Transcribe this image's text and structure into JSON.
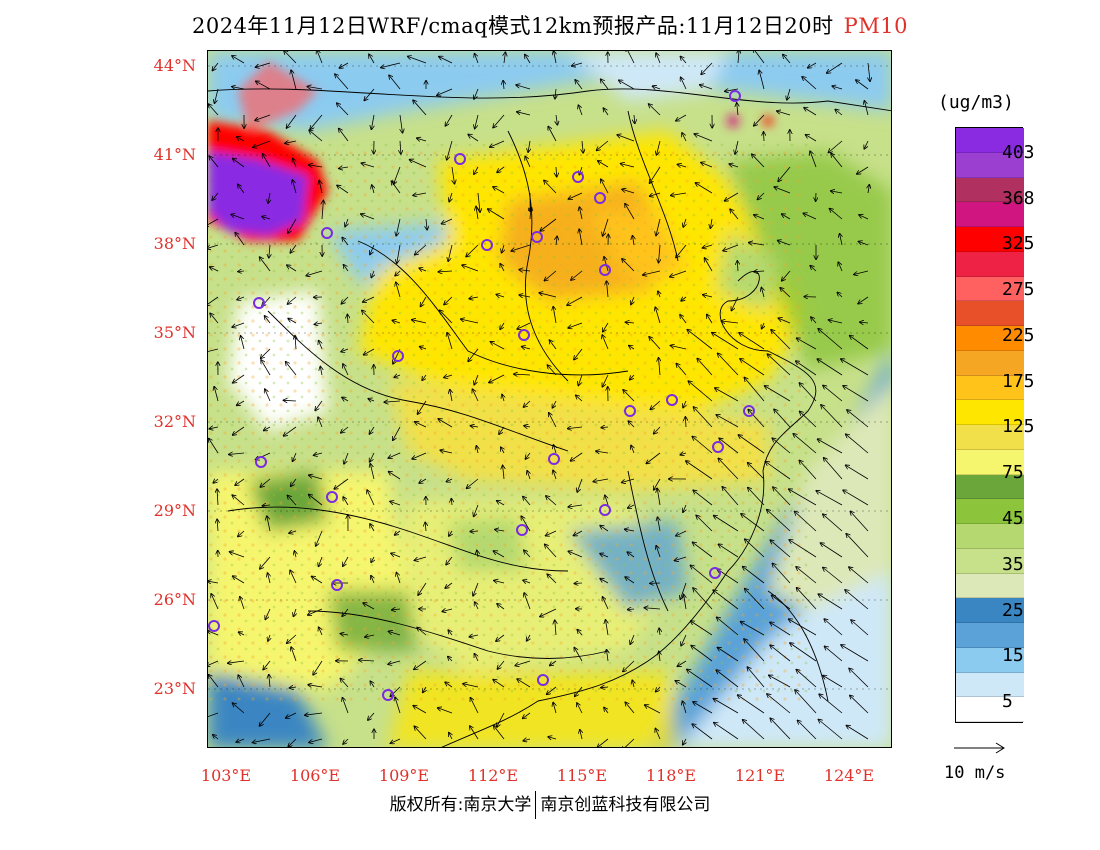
{
  "title": {
    "text": "2024年11月12日WRF/cmaq模式12km预报产品:11月12日20时",
    "pollutant": "PM10",
    "pollutant_color": "#e0312a"
  },
  "map": {
    "lat_labels": [
      "44°N",
      "41°N",
      "38°N",
      "35°N",
      "32°N",
      "29°N",
      "26°N",
      "23°N"
    ],
    "lon_labels": [
      "103°E",
      "106°E",
      "109°E",
      "112°E",
      "115°E",
      "118°E",
      "121°E",
      "124°E"
    ],
    "label_color": "#e0312a"
  },
  "colorbar": {
    "unit": "(ug/m3)",
    "colors": [
      "#8a2be2",
      "#9b3fd1",
      "#b03060",
      "#d01480",
      "#ff0000",
      "#ee2244",
      "#ff6060",
      "#e8502a",
      "#ff8c00",
      "#f5a623",
      "#ffc31a",
      "#ffe600",
      "#f2e04a",
      "#f5f56e",
      "#6aa63a",
      "#8cc43c",
      "#b5d970",
      "#c7e08a",
      "#dde8b8",
      "#3a86c2",
      "#5aa2d8",
      "#8ccbf0",
      "#cfe8f8",
      "#ffffff"
    ],
    "labels": [
      "403",
      "368",
      "325",
      "275",
      "225",
      "175",
      "125",
      "75",
      "45",
      "35",
      "25",
      "15",
      "5"
    ]
  },
  "wind_reference": {
    "label": "10 m/s"
  },
  "footer": {
    "left": "版权所有:南京大学",
    "right": "南京创蓝科技有限公司"
  }
}
